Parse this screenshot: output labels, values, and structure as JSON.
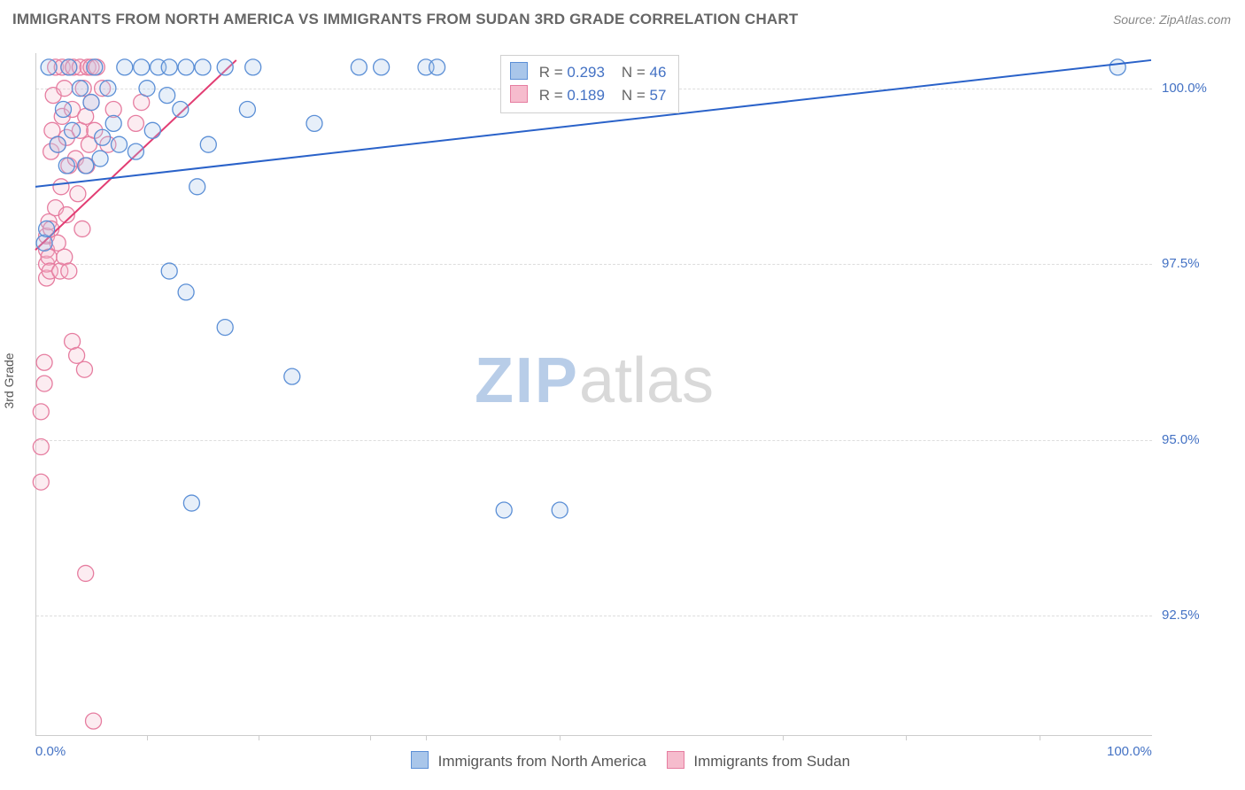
{
  "title": "IMMIGRANTS FROM NORTH AMERICA VS IMMIGRANTS FROM SUDAN 3RD GRADE CORRELATION CHART",
  "source": "Source: ZipAtlas.com",
  "yaxis_label": "3rd Grade",
  "watermark": {
    "zip": "ZIP",
    "atlas": "atlas"
  },
  "chart": {
    "type": "scatter",
    "background_color": "#ffffff",
    "grid_color": "#dddddd",
    "axis_color": "#cccccc",
    "tick_label_color": "#4472c4",
    "tick_fontsize": 15,
    "title_color": "#666666",
    "title_fontsize": 17,
    "xlim": [
      0.0,
      100.0
    ],
    "ylim": [
      90.8,
      100.5
    ],
    "ytick_values": [
      92.5,
      95.0,
      97.5,
      100.0
    ],
    "ytick_labels": [
      "92.5%",
      "95.0%",
      "97.5%",
      "100.0%"
    ],
    "xtick_values": [
      0.0,
      100.0
    ],
    "xtick_labels": [
      "0.0%",
      "100.0%"
    ],
    "xtick_minor_spacing_pct": [
      10,
      20,
      30,
      35,
      47,
      67,
      78,
      90
    ],
    "marker_radius": 9,
    "marker_stroke_width": 1.3,
    "marker_fill_opacity": 0.28,
    "trend_line_width": 2
  },
  "series_a": {
    "name": "Immigrants from North America",
    "color_stroke": "#5b8fd6",
    "color_fill": "#a9c6ea",
    "trend_color": "#2a62c9",
    "R": "0.293",
    "N": "46",
    "trend": {
      "x1": 0,
      "y1": 98.6,
      "x2": 100,
      "y2": 100.4
    },
    "points": [
      {
        "x": 0.8,
        "y": 97.8
      },
      {
        "x": 1.0,
        "y": 98.0
      },
      {
        "x": 1.2,
        "y": 100.3
      },
      {
        "x": 2.0,
        "y": 99.2
      },
      {
        "x": 2.5,
        "y": 99.7
      },
      {
        "x": 2.8,
        "y": 98.9
      },
      {
        "x": 3.0,
        "y": 100.3
      },
      {
        "x": 3.3,
        "y": 99.4
      },
      {
        "x": 4.0,
        "y": 100.0
      },
      {
        "x": 4.5,
        "y": 98.9
      },
      {
        "x": 5.0,
        "y": 99.8
      },
      {
        "x": 5.3,
        "y": 100.3
      },
      {
        "x": 5.8,
        "y": 99.0
      },
      {
        "x": 6.0,
        "y": 99.3
      },
      {
        "x": 6.5,
        "y": 100.0
      },
      {
        "x": 7.0,
        "y": 99.5
      },
      {
        "x": 7.5,
        "y": 99.2
      },
      {
        "x": 8.0,
        "y": 100.3
      },
      {
        "x": 9.0,
        "y": 99.1
      },
      {
        "x": 9.5,
        "y": 100.3
      },
      {
        "x": 10.0,
        "y": 100.0
      },
      {
        "x": 10.5,
        "y": 99.4
      },
      {
        "x": 11.0,
        "y": 100.3
      },
      {
        "x": 11.8,
        "y": 99.9
      },
      {
        "x": 12.0,
        "y": 100.3
      },
      {
        "x": 12.0,
        "y": 97.4
      },
      {
        "x": 13.0,
        "y": 99.7
      },
      {
        "x": 13.5,
        "y": 100.3
      },
      {
        "x": 13.5,
        "y": 97.1
      },
      {
        "x": 14.5,
        "y": 98.6
      },
      {
        "x": 15.0,
        "y": 100.3
      },
      {
        "x": 15.5,
        "y": 99.2
      },
      {
        "x": 17.0,
        "y": 100.3
      },
      {
        "x": 17.0,
        "y": 96.6
      },
      {
        "x": 19.0,
        "y": 99.7
      },
      {
        "x": 19.5,
        "y": 100.3
      },
      {
        "x": 14.0,
        "y": 94.1
      },
      {
        "x": 23.0,
        "y": 95.9
      },
      {
        "x": 25.0,
        "y": 99.5
      },
      {
        "x": 29.0,
        "y": 100.3
      },
      {
        "x": 31.0,
        "y": 100.3
      },
      {
        "x": 35.0,
        "y": 100.3
      },
      {
        "x": 36.0,
        "y": 100.3
      },
      {
        "x": 42.0,
        "y": 94.0
      },
      {
        "x": 47.0,
        "y": 94.0
      },
      {
        "x": 97.0,
        "y": 100.3
      }
    ]
  },
  "series_b": {
    "name": "Immigrants from Sudan",
    "color_stroke": "#e67da0",
    "color_fill": "#f6bccd",
    "trend_color": "#e23d73",
    "R": "0.189",
    "N": "57",
    "trend": {
      "x1": 0,
      "y1": 97.7,
      "x2": 18,
      "y2": 100.4
    },
    "points": [
      {
        "x": 0.5,
        "y": 95.4
      },
      {
        "x": 0.5,
        "y": 94.4
      },
      {
        "x": 0.5,
        "y": 94.9
      },
      {
        "x": 0.8,
        "y": 96.1
      },
      {
        "x": 0.8,
        "y": 95.8
      },
      {
        "x": 1.0,
        "y": 97.3
      },
      {
        "x": 1.0,
        "y": 97.5
      },
      {
        "x": 1.0,
        "y": 97.7
      },
      {
        "x": 1.0,
        "y": 97.9
      },
      {
        "x": 1.2,
        "y": 98.1
      },
      {
        "x": 1.2,
        "y": 97.6
      },
      {
        "x": 1.3,
        "y": 97.4
      },
      {
        "x": 1.4,
        "y": 98.0
      },
      {
        "x": 1.4,
        "y": 99.1
      },
      {
        "x": 1.5,
        "y": 99.4
      },
      {
        "x": 1.6,
        "y": 99.9
      },
      {
        "x": 1.8,
        "y": 100.3
      },
      {
        "x": 1.8,
        "y": 98.3
      },
      {
        "x": 2.0,
        "y": 99.2
      },
      {
        "x": 2.0,
        "y": 97.8
      },
      {
        "x": 2.2,
        "y": 97.4
      },
      {
        "x": 2.3,
        "y": 98.6
      },
      {
        "x": 2.4,
        "y": 99.6
      },
      {
        "x": 2.4,
        "y": 100.3
      },
      {
        "x": 2.6,
        "y": 100.0
      },
      {
        "x": 2.6,
        "y": 97.6
      },
      {
        "x": 2.8,
        "y": 99.3
      },
      {
        "x": 2.8,
        "y": 98.2
      },
      {
        "x": 3.0,
        "y": 98.9
      },
      {
        "x": 3.0,
        "y": 100.3
      },
      {
        "x": 3.0,
        "y": 97.4
      },
      {
        "x": 3.3,
        "y": 99.7
      },
      {
        "x": 3.3,
        "y": 96.4
      },
      {
        "x": 3.4,
        "y": 100.3
      },
      {
        "x": 3.6,
        "y": 99.0
      },
      {
        "x": 3.7,
        "y": 96.2
      },
      {
        "x": 3.8,
        "y": 98.5
      },
      {
        "x": 4.0,
        "y": 99.4
      },
      {
        "x": 4.0,
        "y": 100.3
      },
      {
        "x": 4.2,
        "y": 98.0
      },
      {
        "x": 4.3,
        "y": 100.0
      },
      {
        "x": 4.4,
        "y": 96.0
      },
      {
        "x": 4.5,
        "y": 99.6
      },
      {
        "x": 4.5,
        "y": 93.1
      },
      {
        "x": 4.6,
        "y": 98.9
      },
      {
        "x": 4.7,
        "y": 100.3
      },
      {
        "x": 4.8,
        "y": 99.2
      },
      {
        "x": 5.0,
        "y": 99.8
      },
      {
        "x": 5.0,
        "y": 100.3
      },
      {
        "x": 5.2,
        "y": 91.0
      },
      {
        "x": 5.3,
        "y": 99.4
      },
      {
        "x": 5.5,
        "y": 100.3
      },
      {
        "x": 6.0,
        "y": 100.0
      },
      {
        "x": 6.5,
        "y": 99.2
      },
      {
        "x": 7.0,
        "y": 99.7
      },
      {
        "x": 9.0,
        "y": 99.5
      },
      {
        "x": 9.5,
        "y": 99.8
      }
    ]
  },
  "legend": {
    "a_label": "Immigrants from North America",
    "b_label": "Immigrants from Sudan"
  },
  "stats_labels": {
    "R": "R =",
    "N": "N ="
  }
}
